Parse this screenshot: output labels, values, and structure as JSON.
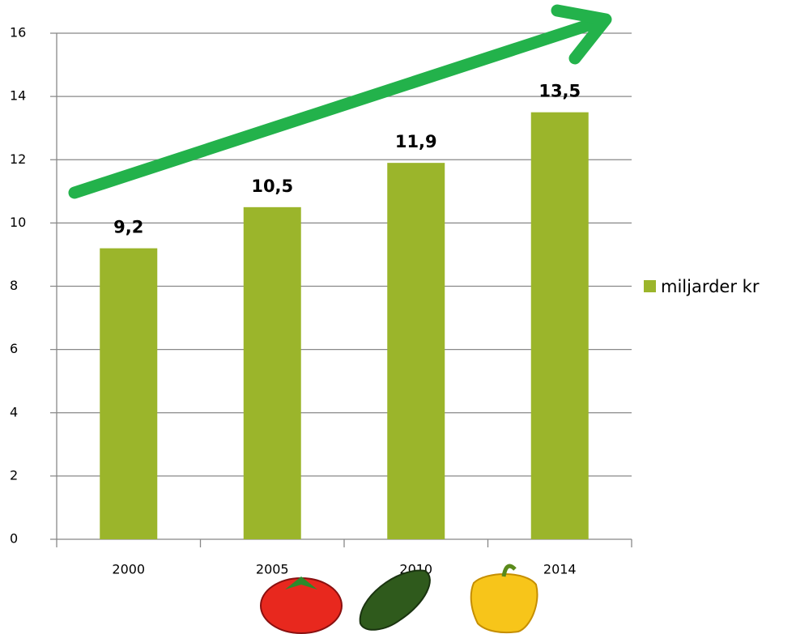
{
  "chart_data": {
    "type": "bar",
    "categories": [
      "2000",
      "2005",
      "2010",
      "2014"
    ],
    "series": [
      {
        "name": "miljarder kr",
        "color": "#9bb52b",
        "values": [
          9.2,
          10.5,
          11.9,
          13.5
        ],
        "value_labels": [
          "9,2",
          "10,5",
          "11,9",
          "13,5"
        ]
      }
    ],
    "ylim": [
      0,
      16
    ],
    "yticks": [
      0,
      2,
      4,
      6,
      8,
      10,
      12,
      14,
      16
    ],
    "grid": true,
    "legend": "right"
  }
}
